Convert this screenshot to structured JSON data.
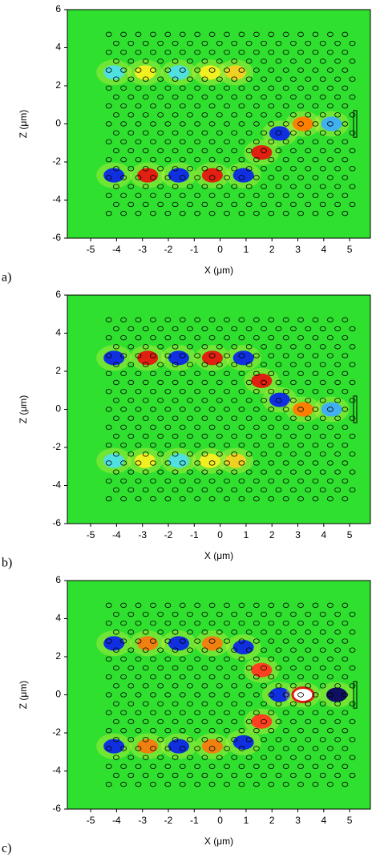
{
  "chart_data": [
    {
      "type": "field",
      "panel_label": "a)",
      "xlabel": "X (μm)",
      "ylabel": "Z (μm)",
      "xlim": [
        -5.9,
        5.8
      ],
      "ylim": [
        -6,
        6
      ],
      "xticks": [
        -5,
        -4,
        -3,
        -2,
        -1,
        0,
        1,
        2,
        3,
        4,
        5
      ],
      "yticks": [
        -6,
        -4,
        -2,
        0,
        2,
        4,
        6
      ],
      "background": "#2fe02f",
      "x": [
        -4.1,
        -2.8,
        -1.6,
        -0.3,
        0.9,
        1.6,
        2.3,
        3.2,
        4.3,
        -4.1,
        -2.9,
        -1.6,
        -0.4,
        0.6
      ],
      "y": [
        -2.7,
        -2.7,
        -2.7,
        -2.7,
        -2.7,
        -1.5,
        -0.5,
        0,
        0,
        2.7,
        2.7,
        2.7,
        2.7,
        2.7
      ],
      "colors": [
        "#1030e0",
        "#e02010",
        "#1030e0",
        "#e02010",
        "#1030e0",
        "#e02010",
        "#1030e0",
        "#ff8000",
        "#40b0f0",
        "#50e0e0",
        "#f0f020",
        "#50e0e0",
        "#f0f020",
        "#f0d020"
      ]
    },
    {
      "type": "field",
      "panel_label": "b)",
      "xlabel": "X (μm)",
      "ylabel": "Z (μm)",
      "xlim": [
        -5.9,
        5.8
      ],
      "ylim": [
        -6,
        6
      ],
      "xticks": [
        -5,
        -4,
        -3,
        -2,
        -1,
        0,
        1,
        2,
        3,
        4,
        5
      ],
      "yticks": [
        -6,
        -4,
        -2,
        0,
        2,
        4,
        6
      ],
      "background": "#2fe02f",
      "x": [
        -4.1,
        -2.8,
        -1.6,
        -0.3,
        0.9,
        1.6,
        2.3,
        3.2,
        4.3,
        -4.1,
        -2.9,
        -1.6,
        -0.4,
        0.6
      ],
      "y": [
        2.7,
        2.7,
        2.7,
        2.7,
        2.7,
        1.5,
        0.5,
        0,
        0,
        -2.7,
        -2.7,
        -2.7,
        -2.7,
        -2.7
      ],
      "colors": [
        "#1030e0",
        "#e02010",
        "#1030e0",
        "#e02010",
        "#1030e0",
        "#e02010",
        "#1030e0",
        "#ff8000",
        "#40b0f0",
        "#50e0e0",
        "#f0f020",
        "#50e0e0",
        "#f0f020",
        "#f0d020"
      ]
    },
    {
      "type": "field",
      "panel_label": "c)",
      "xlabel": "X (μm)",
      "ylabel": "Z (μm)",
      "xlim": [
        -5.9,
        5.8
      ],
      "ylim": [
        -6,
        6
      ],
      "xticks": [
        -5,
        -4,
        -3,
        -2,
        -1,
        0,
        1,
        2,
        3,
        4,
        5
      ],
      "yticks": [
        -6,
        -4,
        -2,
        0,
        2,
        4,
        6
      ],
      "background": "#2fe02f",
      "x": [
        -4.1,
        -2.8,
        -1.6,
        -0.3,
        0.9,
        -4.1,
        -2.8,
        -1.6,
        -0.3,
        0.9,
        1.6,
        1.6,
        2.3,
        3.2,
        4.5
      ],
      "y": [
        2.7,
        2.7,
        2.7,
        2.7,
        2.5,
        -2.7,
        -2.7,
        -2.7,
        -2.7,
        -2.5,
        1.3,
        -1.4,
        0,
        0,
        0
      ],
      "colors": [
        "#1030e0",
        "#f08010",
        "#1030e0",
        "#f08010",
        "#1030e0",
        "#1030e0",
        "#f08010",
        "#1030e0",
        "#f08010",
        "#1030e0",
        "#ff4020",
        "#ff4020",
        "#1030e0",
        "#ffffff",
        "#101060"
      ]
    }
  ]
}
